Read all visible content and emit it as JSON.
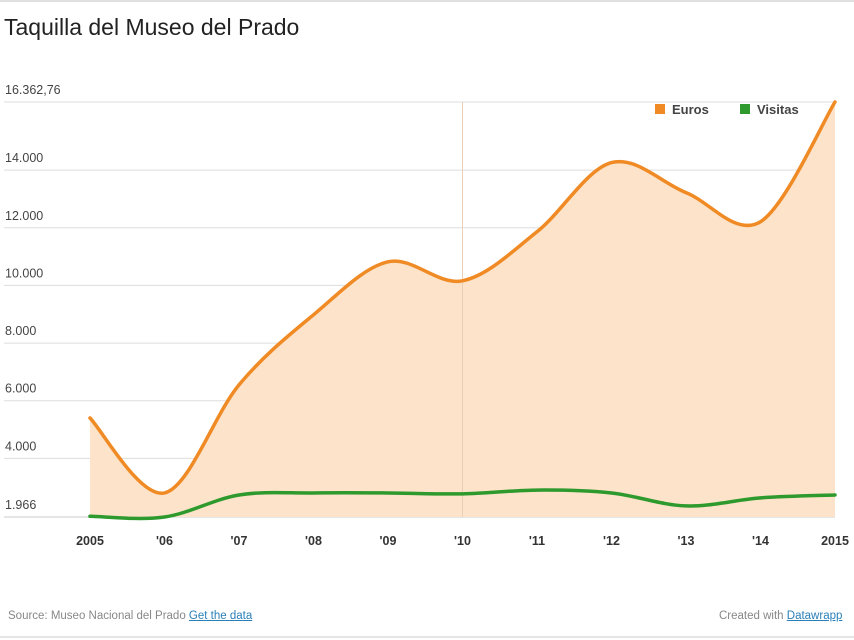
{
  "title": "Taquilla del Museo del Prado",
  "footer": {
    "source_label": "Source: Museo Nacional del Prado",
    "get_data_link": "Get the data",
    "created_label": "Created with",
    "datawrapper_link": "Datawrapp"
  },
  "chart_data": {
    "type": "area",
    "title": "Taquilla del Museo del Prado",
    "xlabel": "",
    "ylabel": "",
    "categories": [
      "2005",
      "'06",
      "'07",
      "'08",
      "'09",
      "'10",
      "'11",
      "'12",
      "'13",
      "'14",
      "2015"
    ],
    "ylim": [
      1966,
      16362.76
    ],
    "yticks": [
      1966,
      4000,
      6000,
      8000,
      10000,
      12000,
      14000,
      16362.76
    ],
    "ytick_labels": [
      "1.966",
      "4.000",
      "6.000",
      "8.000",
      "10.000",
      "12.000",
      "14.000",
      "16.362,76"
    ],
    "grid": true,
    "legend": "top-right",
    "series": [
      {
        "name": "Euros",
        "color": "#f08a24",
        "fill": "#fce3c9",
        "values": [
          5400,
          2800,
          6550,
          8980,
          10820,
          10160,
          11860,
          14260,
          13220,
          12210,
          16362.76
        ]
      },
      {
        "name": "Visitas",
        "color": "#2e9a2e",
        "values": [
          1990,
          1966,
          2730,
          2800,
          2800,
          2770,
          2900,
          2800,
          2350,
          2630,
          2730
        ]
      }
    ]
  }
}
